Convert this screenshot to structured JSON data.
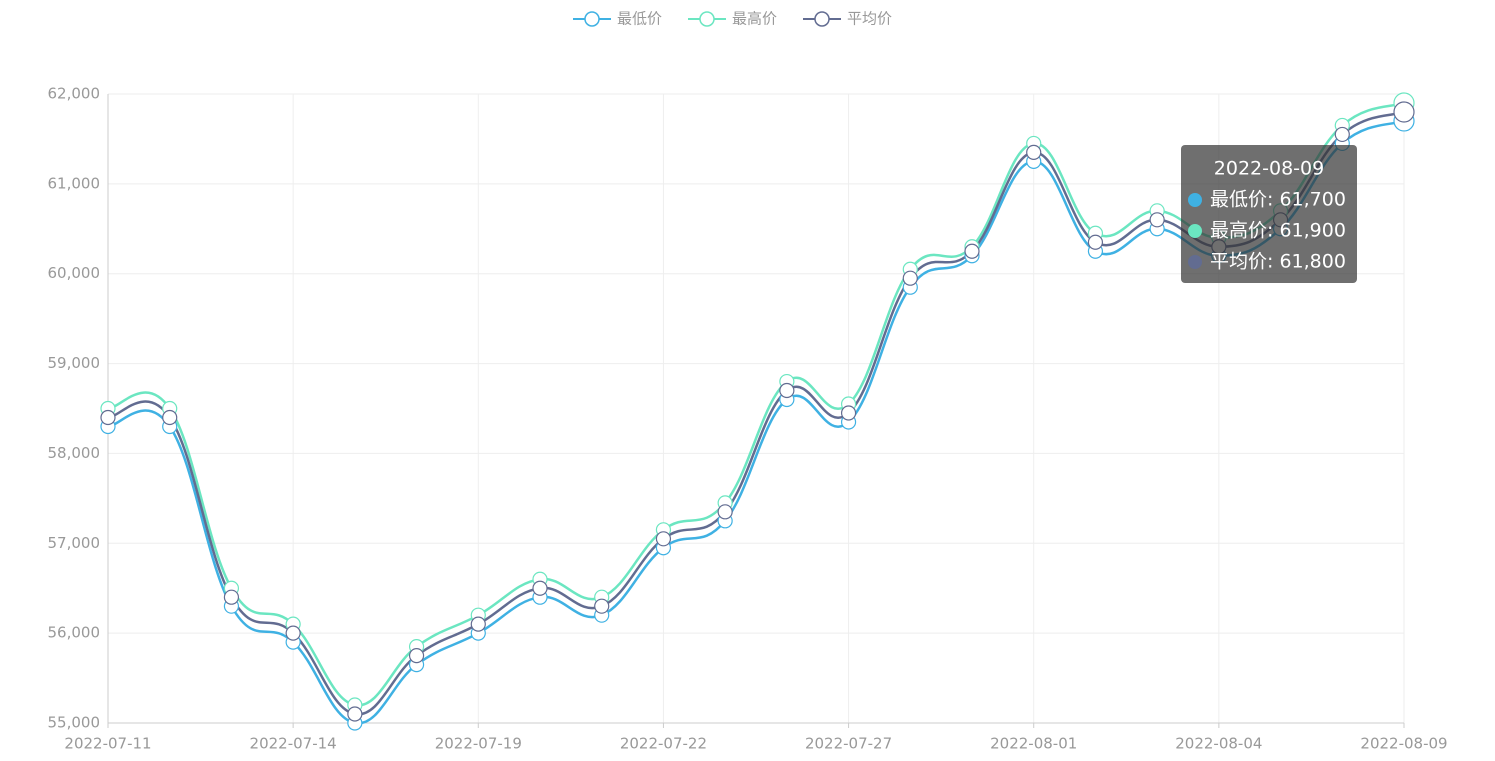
{
  "chart_data": {
    "type": "line",
    "categories": [
      "2022-07-11",
      null,
      null,
      "2022-07-14",
      null,
      null,
      "2022-07-19",
      null,
      null,
      "2022-07-22",
      null,
      null,
      "2022-07-27",
      null,
      null,
      "2022-08-01",
      null,
      null,
      "2022-08-04",
      null,
      null,
      "2022-08-09"
    ],
    "series": [
      {
        "name": "最低价",
        "color": "#3fb1e3",
        "values": [
          58300,
          58300,
          56300,
          55900,
          55000,
          55650,
          56000,
          56400,
          56200,
          56950,
          57250,
          58600,
          58350,
          59850,
          60200,
          61250,
          60250,
          60500,
          60200,
          60500,
          61450,
          61700
        ]
      },
      {
        "name": "最高价",
        "color": "#6be6c1",
        "values": [
          58500,
          58500,
          56500,
          56100,
          55200,
          55850,
          56200,
          56600,
          56400,
          57150,
          57450,
          58800,
          58550,
          60050,
          60300,
          61450,
          60450,
          60700,
          60400,
          60700,
          61650,
          61900
        ]
      },
      {
        "name": "平均价",
        "color": "#626c91",
        "values": [
          58400,
          58400,
          56400,
          56000,
          55100,
          55750,
          56100,
          56500,
          56300,
          57050,
          57350,
          58700,
          58450,
          59950,
          60250,
          61350,
          60350,
          60600,
          60300,
          60600,
          61550,
          61800
        ]
      }
    ],
    "ylim": [
      55000,
      62000
    ],
    "yticks": [
      {
        "value": 55000,
        "label": "55,000"
      },
      {
        "value": 56000,
        "label": "56,000"
      },
      {
        "value": 57000,
        "label": "57,000"
      },
      {
        "value": 58000,
        "label": "58,000"
      },
      {
        "value": 59000,
        "label": "59,000"
      },
      {
        "value": 60000,
        "label": "60,000"
      },
      {
        "value": 61000,
        "label": "61,000"
      },
      {
        "value": 62000,
        "label": "62,000"
      }
    ],
    "grid": true,
    "legend": "top",
    "tooltip": {
      "title": "2022-08-09",
      "rows": [
        "最低价: 61,700",
        "最高价: 61,900",
        "平均价: 61,800"
      ]
    }
  }
}
